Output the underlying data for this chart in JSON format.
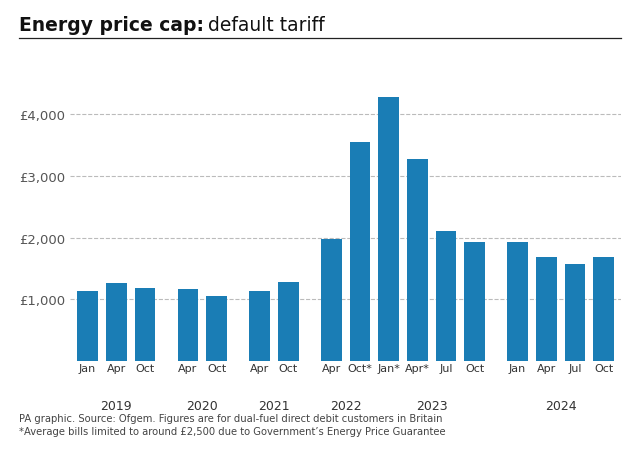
{
  "title_bold": "Energy price cap:",
  "title_normal": " default tariff",
  "bar_color": "#1a7db5",
  "background_color": "#ffffff",
  "values": [
    1137,
    1254,
    1177,
    1162,
    1042,
    1138,
    1277,
    1971,
    3549,
    4279,
    3280,
    2100,
    1928,
    1928,
    1690,
    1567,
    1690
  ],
  "month_labels": [
    "Jan",
    "Apr",
    "Oct",
    "Apr",
    "Oct",
    "Apr",
    "Oct",
    "Apr",
    "Oct*",
    "Jan*",
    "Apr*",
    "Jul",
    "Oct",
    "Jan",
    "Apr",
    "Jul",
    "Oct"
  ],
  "year_groups": {
    "2019": [
      0,
      1,
      2
    ],
    "2020": [
      3,
      4
    ],
    "2021": [
      5,
      6
    ],
    "2022": [
      7,
      8
    ],
    "2023": [
      9,
      10,
      11,
      12
    ],
    "2024": [
      13,
      14,
      15,
      16
    ]
  },
  "gaps": [
    0,
    0,
    0,
    0.5,
    0,
    0.5,
    0,
    0.5,
    0,
    0,
    0,
    0,
    0,
    0.5,
    0,
    0,
    0
  ],
  "yticks": [
    1000,
    2000,
    3000,
    4000
  ],
  "ytick_labels": [
    "£1,000",
    "£2,000",
    "£3,000",
    "£4,000"
  ],
  "ylim": [
    0,
    4700
  ],
  "footnote1": "PA graphic. Source: Ofgem. Figures are for dual-fuel direct debit customers in Britain",
  "footnote2": "*Average bills limited to around £2,500 due to Government’s Energy Price Guarantee",
  "bar_width": 0.72
}
